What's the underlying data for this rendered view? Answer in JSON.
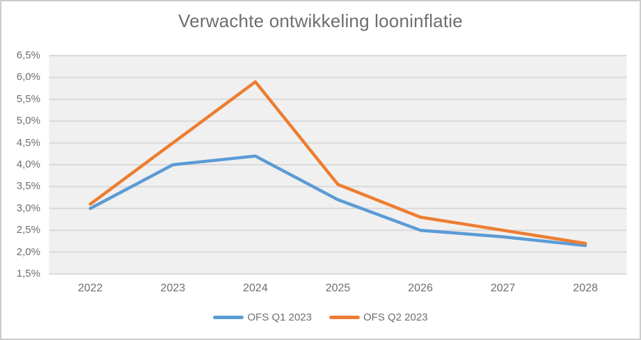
{
  "chart_data": {
    "type": "line",
    "title": "Verwachte ontwikkeling looninflatie",
    "categories": [
      "2022",
      "2023",
      "2024",
      "2025",
      "2026",
      "2027",
      "2028"
    ],
    "series": [
      {
        "name": "OFS Q1 2023",
        "color": "#5B9BD5",
        "values": [
          3.0,
          4.0,
          4.2,
          3.2,
          2.5,
          2.35,
          2.15
        ]
      },
      {
        "name": "OFS Q2 2023",
        "color": "#ED7D31",
        "values": [
          3.1,
          4.5,
          5.9,
          3.55,
          2.8,
          2.5,
          2.2
        ]
      }
    ],
    "xlabel": "",
    "ylabel": "",
    "ylim": [
      1.5,
      6.5
    ],
    "y_ticks": [
      {
        "label": "6,5%",
        "value": 6.5
      },
      {
        "label": "6,0%",
        "value": 6.0
      },
      {
        "label": "5,5%",
        "value": 5.5
      },
      {
        "label": "5,0%",
        "value": 5.0
      },
      {
        "label": "4,5%",
        "value": 4.5
      },
      {
        "label": "4,0%",
        "value": 4.0
      },
      {
        "label": "3,5%",
        "value": 3.5
      },
      {
        "label": "3,0%",
        "value": 3.0
      },
      {
        "label": "2,5%",
        "value": 2.5
      },
      {
        "label": "2,0%",
        "value": 2.0
      },
      {
        "label": "1,5%",
        "value": 1.5
      }
    ],
    "grid": "horizontal",
    "legend_position": "bottom",
    "colors": {
      "plot_background": "#F0F0F0",
      "gridline": "#D9D9D9",
      "text": "#6E6E6E",
      "border": "#CCCCCC"
    }
  }
}
